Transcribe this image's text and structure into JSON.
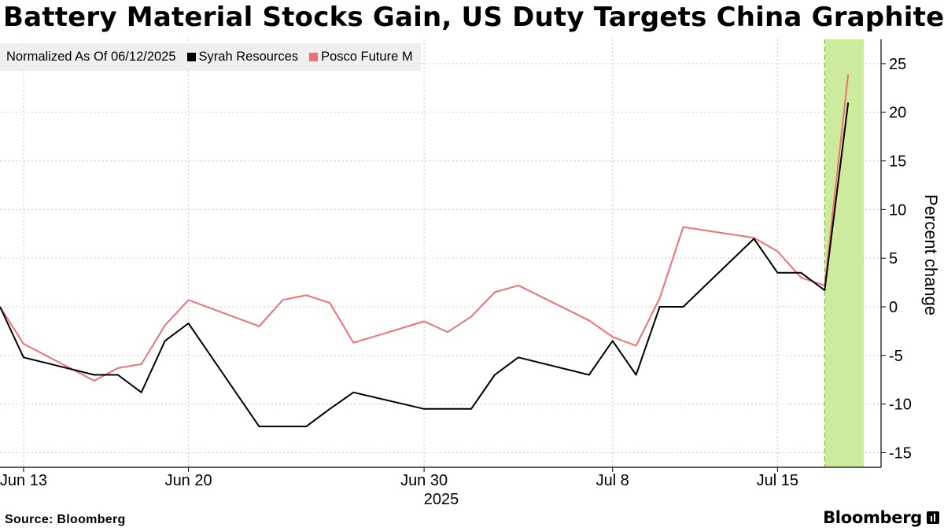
{
  "chart_data": {
    "type": "line",
    "title": "Battery Material Stocks Gain, US Duty Targets China Graphite",
    "legend_title": "Normalized As Of 06/12/2025",
    "ylabel": "Percent change",
    "x_year_label": "2025",
    "ylim": [
      -16.5,
      27.5
    ],
    "y_ticks": [
      25,
      20,
      15,
      10,
      5,
      0,
      -5,
      -10,
      -15
    ],
    "y_tick_labels": [
      "25",
      "20",
      "15",
      "10",
      "5",
      "0",
      "-5",
      "-10",
      "-15"
    ],
    "x": [
      "2025-06-12",
      "2025-06-13",
      "2025-06-16",
      "2025-06-17",
      "2025-06-18",
      "2025-06-19",
      "2025-06-20",
      "2025-06-23",
      "2025-06-24",
      "2025-06-25",
      "2025-06-26",
      "2025-06-27",
      "2025-06-30",
      "2025-07-01",
      "2025-07-02",
      "2025-07-03",
      "2025-07-04",
      "2025-07-07",
      "2025-07-08",
      "2025-07-09",
      "2025-07-10",
      "2025-07-11",
      "2025-07-14",
      "2025-07-15",
      "2025-07-16",
      "2025-07-17",
      "2025-07-18"
    ],
    "x_ticks": [
      {
        "date": "2025-06-13",
        "label": "Jun 13"
      },
      {
        "date": "2025-06-20",
        "label": "Jun 20"
      },
      {
        "date": "2025-06-30",
        "label": "Jun 30"
      },
      {
        "date": "2025-07-08",
        "label": "Jul 8"
      },
      {
        "date": "2025-07-15",
        "label": "Jul 15"
      }
    ],
    "highlight": {
      "from": "2025-07-17",
      "to": "2025-07-18",
      "color": "#cdeb9c"
    },
    "grid": true,
    "legend_position": "top-left",
    "series": [
      {
        "name": "Syrah Resources",
        "color": "#000000",
        "values": [
          0,
          -5.2,
          -7.0,
          -7.0,
          -8.8,
          -3.5,
          -1.7,
          -12.3,
          -12.3,
          -12.3,
          -10.5,
          -8.8,
          -10.5,
          -10.5,
          -10.5,
          -7.0,
          -5.2,
          -7.0,
          -3.5,
          -7.0,
          0,
          0,
          7.0,
          3.5,
          3.5,
          1.7,
          21.0
        ]
      },
      {
        "name": "Posco Future M",
        "color": "#f07070",
        "values": [
          0,
          -3.8,
          -7.6,
          -6.3,
          -5.9,
          -1.9,
          0.7,
          -2.0,
          0.7,
          1.2,
          0.4,
          -3.7,
          -1.5,
          -2.6,
          -1.0,
          1.5,
          2.2,
          -1.4,
          -3.1,
          -4.0,
          0.9,
          8.2,
          7.1,
          5.7,
          3.0,
          2.2,
          23.9
        ]
      }
    ]
  },
  "footer": {
    "source": "Source: Bloomberg",
    "brand": "Bloomberg"
  }
}
